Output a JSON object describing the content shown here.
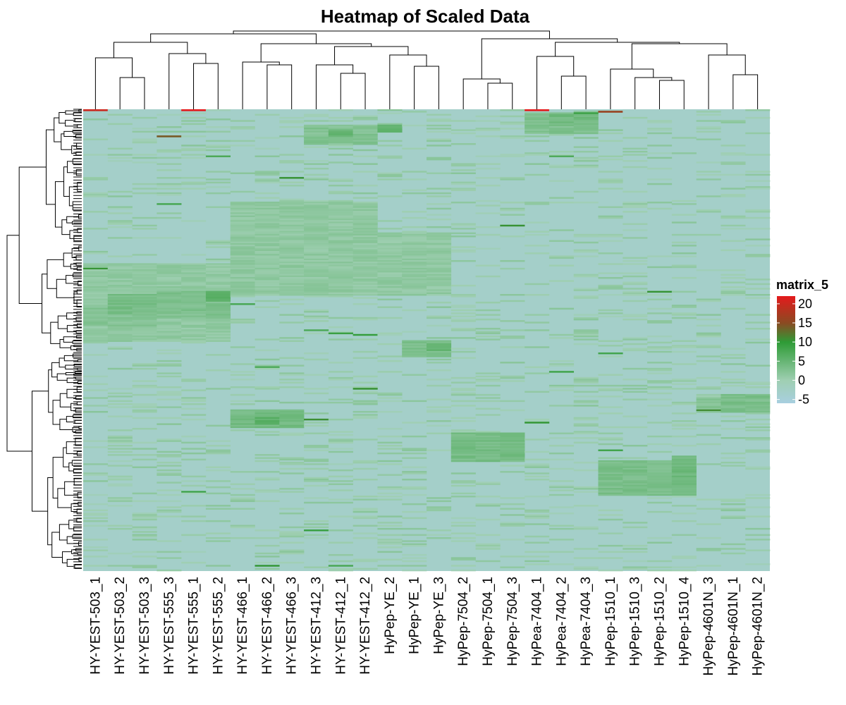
{
  "chart_data": {
    "type": "heatmap",
    "title": "Heatmap of Scaled Data",
    "columns": [
      "HY-YEST-503_1",
      "HY-YEST-503_2",
      "HY-YEST-503_3",
      "HY-YEST-555_3",
      "HY-YEST-555_1",
      "HY-YEST-555_2",
      "HY-YEST-466_1",
      "HY-YEST-466_2",
      "HY-YEST-466_3",
      "HY-YEST-412_3",
      "HY-YEST-412_1",
      "HY-YEST-412_2",
      "HyPep-YE_2",
      "HyPep-YE_1",
      "HyPep-YE_3",
      "HyPep-7504_2",
      "HyPep-7504_1",
      "HyPep-7504_3",
      "HyPea-7404_1",
      "HyPea-7404_2",
      "HyPea-7404_3",
      "HyPep-1510_1",
      "HyPep-1510_3",
      "HyPep-1510_2",
      "HyPep-1510_4",
      "HyPep-4601N_3",
      "HyPep-4601N_1",
      "HyPep-4601N_2"
    ],
    "column_dendrogram": true,
    "row_dendrogram": true,
    "row_labels_shown": false,
    "color_scale": {
      "name": "matrix_5",
      "ticks": [
        20,
        15,
        10,
        5,
        0,
        -5
      ],
      "min": -6,
      "max": 22,
      "stops": [
        {
          "value": -6,
          "color": "#a8cfe0"
        },
        {
          "value": 0,
          "color": "#9fcfb2"
        },
        {
          "value": 10,
          "color": "#2e9b36"
        },
        {
          "value": 15,
          "color": "#8b4a22"
        },
        {
          "value": 22,
          "color": "#e41a1c"
        }
      ]
    },
    "legend_position": "right",
    "background_value": -3
  }
}
